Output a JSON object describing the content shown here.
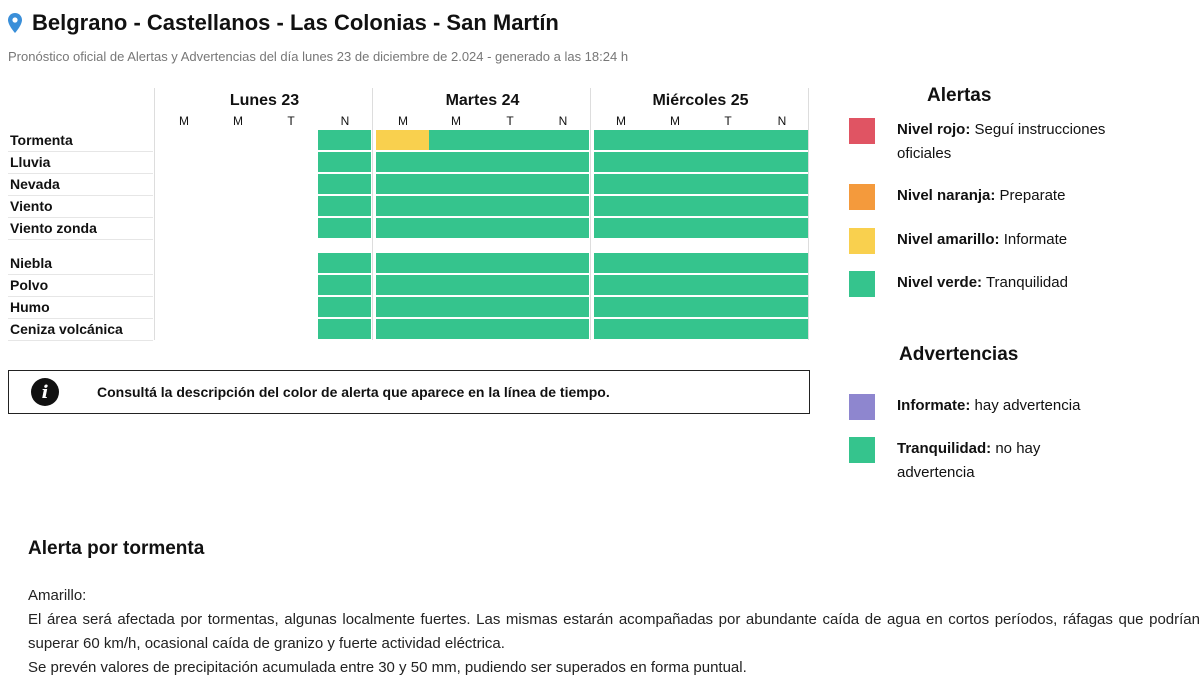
{
  "header": {
    "title": "Belgrano - Castellanos - Las Colonias - San Martín",
    "subtitle": "Pronóstico oficial de Alertas y Advertencias del día lunes 23 de diciembre de 2.024 - generado a las 18:24 h"
  },
  "grid": {
    "days": [
      {
        "label": "Lunes 23",
        "slots": [
          "M",
          "M",
          "T",
          "N"
        ]
      },
      {
        "label": "Martes 24",
        "slots": [
          "M",
          "M",
          "T",
          "N"
        ]
      },
      {
        "label": "Miércoles 25",
        "slots": [
          "M",
          "M",
          "T",
          "N"
        ]
      }
    ],
    "rows": [
      {
        "label": "Tormenta",
        "levels": [
          "",
          "",
          "",
          "verde",
          "amarillo",
          "verde",
          "verde",
          "verde",
          "verde",
          "verde",
          "verde",
          "verde"
        ]
      },
      {
        "label": "Lluvia",
        "levels": [
          "",
          "",
          "",
          "verde",
          "verde",
          "verde",
          "verde",
          "verde",
          "verde",
          "verde",
          "verde",
          "verde"
        ]
      },
      {
        "label": "Nevada",
        "levels": [
          "",
          "",
          "",
          "verde",
          "verde",
          "verde",
          "verde",
          "verde",
          "verde",
          "verde",
          "verde",
          "verde"
        ]
      },
      {
        "label": "Viento",
        "levels": [
          "",
          "",
          "",
          "verde",
          "verde",
          "verde",
          "verde",
          "verde",
          "verde",
          "verde",
          "verde",
          "verde"
        ]
      },
      {
        "label": "Viento zonda",
        "levels": [
          "",
          "",
          "",
          "verde",
          "verde",
          "verde",
          "verde",
          "verde",
          "verde",
          "verde",
          "verde",
          "verde"
        ]
      },
      {
        "label": "Niebla",
        "levels": [
          "",
          "",
          "",
          "verde",
          "verde",
          "verde",
          "verde",
          "verde",
          "verde",
          "verde",
          "verde",
          "verde"
        ]
      },
      {
        "label": "Polvo",
        "levels": [
          "",
          "",
          "",
          "verde",
          "verde",
          "verde",
          "verde",
          "verde",
          "verde",
          "verde",
          "verde",
          "verde"
        ]
      },
      {
        "label": "Humo",
        "levels": [
          "",
          "",
          "",
          "verde",
          "verde",
          "verde",
          "verde",
          "verde",
          "verde",
          "verde",
          "verde",
          "verde"
        ]
      },
      {
        "label": "Ceniza volcánica",
        "levels": [
          "",
          "",
          "",
          "verde",
          "verde",
          "verde",
          "verde",
          "verde",
          "verde",
          "verde",
          "verde",
          "verde"
        ]
      }
    ],
    "colors": {
      "verde": "#35c48d",
      "amarillo": "#f9d04e"
    }
  },
  "info": {
    "icon": "info-icon",
    "text": "Consultá la descripción del color de alerta que aparece en la línea de tiempo."
  },
  "legend": {
    "alertas_title": "Alertas",
    "alertas": [
      {
        "name": "Nivel rojo:",
        "desc": "Seguí instrucciones oficiales",
        "color": "#e05463"
      },
      {
        "name": "Nivel naranja:",
        "desc": "Preparate",
        "color": "#f49a3c"
      },
      {
        "name": "Nivel amarillo:",
        "desc": "Informate",
        "color": "#f9d04e"
      },
      {
        "name": "Nivel verde:",
        "desc": "Tranquilidad",
        "color": "#35c48d"
      }
    ],
    "advertencias_title": "Advertencias",
    "advertencias": [
      {
        "name": "Informate:",
        "desc": "hay advertencia",
        "color": "#8e86cf"
      },
      {
        "name": "Tranquilidad:",
        "desc": "no hay advertencia",
        "color": "#35c48d"
      }
    ]
  },
  "detail": {
    "title": "Alerta por tormenta",
    "level": "Amarillo:",
    "paragraph1": "El área será afectada por tormentas, algunas localmente fuertes. Las mismas estarán acompañadas por abundante caída de agua en cortos períodos, ráfagas que podrían superar 60 km/h, ocasional caída de granizo y fuerte actividad eléctrica.",
    "paragraph2": "Se prevén valores de precipitación acumulada entre 30 y 50 mm, pudiendo ser superados en forma puntual."
  }
}
